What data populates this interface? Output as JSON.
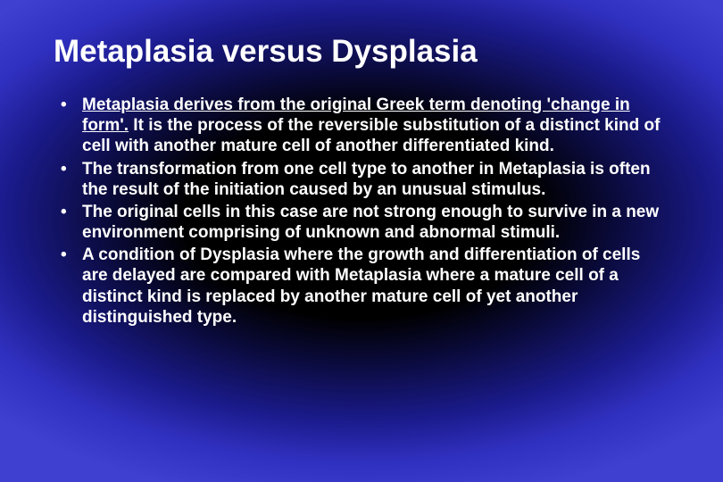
{
  "slide": {
    "title": "Metaplasia versus Dysplasia",
    "title_color": "#ffffff",
    "title_fontsize": 35,
    "bullet_fontsize": 19,
    "bullet_color": "#ffffff",
    "background_gradient": {
      "type": "radial",
      "center_color": "#000000",
      "mid_color": "#1a1a8a",
      "edge_color": "#4040d0"
    },
    "bullets": [
      {
        "runs": [
          {
            "text": "Metaplasia derives from the original Greek term denoting ",
            "underline": true
          },
          {
            "text": "'change in form'.",
            "underline": true
          },
          {
            "text": " It is the process of the reversible substitution of a distinct kind of cell with another mature cell of another differentiated kind.",
            "underline": false
          }
        ]
      },
      {
        "runs": [
          {
            "text": "The transformation from one cell type to another in Metaplasia is often the result of the initiation caused by an unusual stimulus.",
            "underline": false
          }
        ]
      },
      {
        "runs": [
          {
            "text": "The original cells in this case are not strong enough to survive in a new environment comprising of unknown and abnormal stimuli.",
            "underline": false
          }
        ]
      },
      {
        "runs": [
          {
            "text": "A condition of Dysplasia where the growth and differentiation of cells are delayed are compared with Metaplasia where a mature cell of a distinct kind is replaced by another mature cell of yet another distinguished type.",
            "underline": false
          }
        ]
      }
    ]
  }
}
